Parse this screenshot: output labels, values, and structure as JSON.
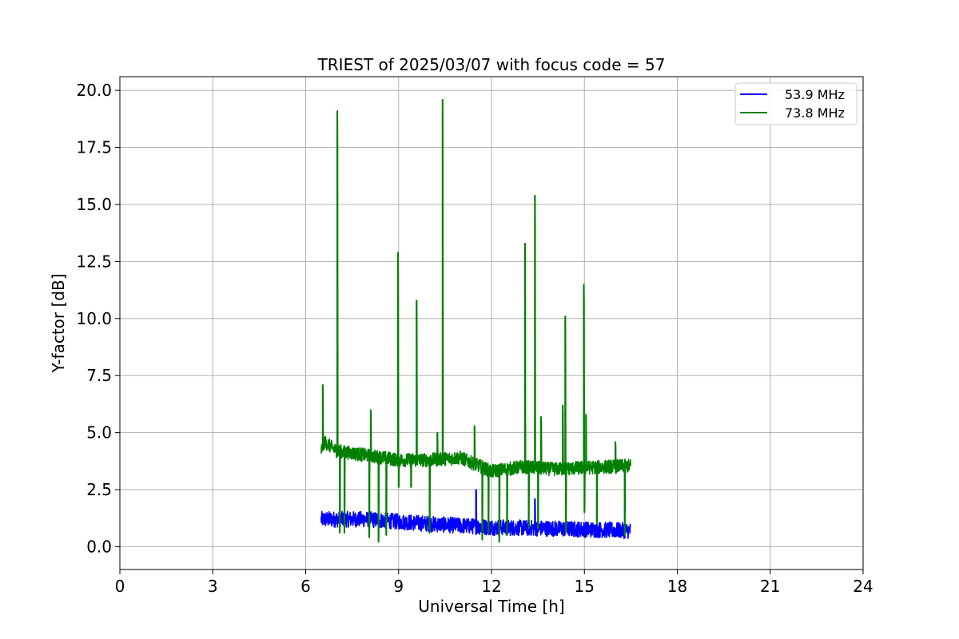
{
  "chart_data": {
    "type": "line",
    "title": "TRIEST of 2025/03/07 with focus code = 57",
    "xlabel": "Universal Time [h]",
    "ylabel": "Y-factor [dB]",
    "xlim": [
      0,
      24
    ],
    "ylim": [
      -1.0,
      20.6
    ],
    "xticks": [
      0,
      3,
      6,
      9,
      12,
      15,
      18,
      21,
      24
    ],
    "xtick_labels": [
      "0",
      "3",
      "6",
      "9",
      "12",
      "15",
      "18",
      "21",
      "24"
    ],
    "yticks": [
      0.0,
      2.5,
      5.0,
      7.5,
      10.0,
      12.5,
      15.0,
      17.5,
      20.0
    ],
    "ytick_labels": [
      "0.0",
      "2.5",
      "5.0",
      "7.5",
      "10.0",
      "12.5",
      "15.0",
      "17.5",
      "20.0"
    ],
    "grid": true,
    "legend_position": "top-right",
    "series": [
      {
        "name": "53.9 MHz",
        "color": "#0000ff",
        "x_range": [
          6.5,
          16.5
        ],
        "baseline": [
          [
            6.5,
            1.2
          ],
          [
            8.0,
            1.2
          ],
          [
            10.0,
            1.0
          ],
          [
            12.0,
            0.85
          ],
          [
            14.0,
            0.8
          ],
          [
            16.5,
            0.7
          ]
        ],
        "noise_band": 0.35,
        "spikes": [
          [
            11.5,
            2.5
          ],
          [
            13.4,
            2.1
          ]
        ],
        "dips": []
      },
      {
        "name": "73.8 MHz",
        "color": "#008000",
        "x_range": [
          6.5,
          16.5
        ],
        "baseline": [
          [
            6.5,
            4.2
          ],
          [
            6.6,
            4.6
          ],
          [
            7.0,
            4.2
          ],
          [
            8.0,
            4.0
          ],
          [
            9.0,
            3.8
          ],
          [
            10.0,
            3.8
          ],
          [
            11.0,
            3.9
          ],
          [
            12.0,
            3.3
          ],
          [
            13.0,
            3.5
          ],
          [
            14.0,
            3.4
          ],
          [
            16.5,
            3.55
          ]
        ],
        "noise_band": 0.3,
        "spikes": [
          [
            6.55,
            7.1
          ],
          [
            7.02,
            19.1
          ],
          [
            8.1,
            6.0
          ],
          [
            8.98,
            12.9
          ],
          [
            9.58,
            10.8
          ],
          [
            10.25,
            5.0
          ],
          [
            10.42,
            19.6
          ],
          [
            11.45,
            5.3
          ],
          [
            13.08,
            13.3
          ],
          [
            13.4,
            15.4
          ],
          [
            13.6,
            5.7
          ],
          [
            14.3,
            6.2
          ],
          [
            14.38,
            10.1
          ],
          [
            14.98,
            11.5
          ],
          [
            15.05,
            5.8
          ],
          [
            16.0,
            4.6
          ]
        ],
        "dips": [
          [
            7.1,
            0.6
          ],
          [
            7.25,
            0.6
          ],
          [
            8.05,
            0.4
          ],
          [
            8.35,
            0.2
          ],
          [
            8.6,
            0.5
          ],
          [
            9.0,
            2.6
          ],
          [
            9.4,
            2.6
          ],
          [
            10.0,
            0.6
          ],
          [
            11.7,
            0.3
          ],
          [
            11.9,
            0.6
          ],
          [
            12.25,
            0.2
          ],
          [
            12.5,
            0.5
          ],
          [
            13.2,
            0.8
          ],
          [
            13.5,
            0.8
          ],
          [
            14.4,
            0.6
          ],
          [
            15.0,
            1.5
          ],
          [
            15.4,
            1.0
          ],
          [
            16.3,
            0.5
          ]
        ]
      }
    ]
  }
}
